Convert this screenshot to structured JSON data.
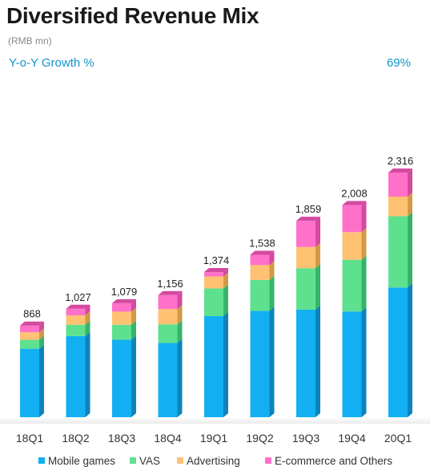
{
  "header": {
    "title": "Diversified Revenue Mix",
    "unit": "(RMB mn)",
    "growth_label": "Y-o-Y Growth %",
    "growth_value": "69%"
  },
  "chart_data": {
    "type": "bar",
    "stacked": true,
    "title": "Diversified Revenue Mix",
    "ylabel": "",
    "xlabel": "",
    "categories": [
      "18Q1",
      "18Q2",
      "18Q3",
      "18Q4",
      "19Q1",
      "19Q2",
      "19Q3",
      "19Q4",
      "20Q1"
    ],
    "totals": [
      868,
      1027,
      1079,
      1156,
      1374,
      1538,
      1859,
      2008,
      2316
    ],
    "total_labels": [
      "868",
      "1,027",
      "1,079",
      "1,156",
      "1,374",
      "1,538",
      "1,859",
      "2,008",
      "2,316"
    ],
    "series": [
      {
        "name": "Mobile games",
        "color": "#12b0f2",
        "side": "#0c84bb",
        "values": [
          648,
          768,
          733,
          703,
          957,
          1006,
          1018,
          1001,
          1228
        ]
      },
      {
        "name": "VAS",
        "color": "#5ee18f",
        "side": "#36b56a",
        "values": [
          85,
          107,
          142,
          176,
          262,
          293,
          393,
          489,
          674
        ]
      },
      {
        "name": "Advertising",
        "color": "#ffc272",
        "side": "#d29a45",
        "values": [
          71,
          89,
          124,
          145,
          113,
          141,
          200,
          262,
          186
        ]
      },
      {
        "name": "E-commerce and Others",
        "color": "#ff71c8",
        "side": "#d34aa0",
        "values": [
          64,
          63,
          80,
          132,
          42,
          98,
          248,
          256,
          228
        ]
      }
    ],
    "ylim": [
      0,
      2316
    ],
    "grid": false,
    "legend_position": "bottom"
  }
}
